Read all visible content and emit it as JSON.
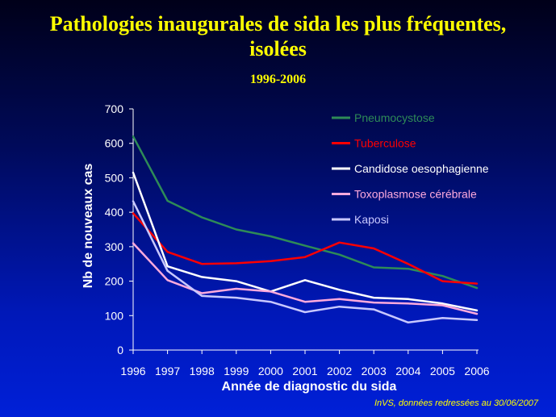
{
  "slide": {
    "title_line1": "Pathologies inaugurales de sida les plus fréquentes,",
    "title_line2": "isolées",
    "subtitle": "1996-2006",
    "source": "InVS, données redressées au 30/06/2007"
  },
  "colors": {
    "background": "#000a5a",
    "title": "#ffff00",
    "axis_text": "#ffffff"
  },
  "chart_data": {
    "type": "line",
    "title": "",
    "xlabel": "Année de diagnostic du sida",
    "ylabel": "Nb de nouveaux cas",
    "x": [
      1996,
      1997,
      1998,
      1999,
      2000,
      2001,
      2002,
      2003,
      2004,
      2005,
      2006
    ],
    "ylim": [
      0,
      700
    ],
    "yticks": [
      0,
      100,
      200,
      300,
      400,
      500,
      600,
      700
    ],
    "grid": false,
    "legend_position": "top-right",
    "series": [
      {
        "name": "Pneumocystose",
        "color": "#2e8b57",
        "values": [
          620,
          433,
          385,
          350,
          330,
          303,
          277,
          240,
          236,
          215,
          180
        ]
      },
      {
        "name": "Tuberculose",
        "color": "#ff0000",
        "values": [
          397,
          285,
          250,
          252,
          258,
          270,
          312,
          295,
          250,
          200,
          193
        ]
      },
      {
        "name": "Candidose oesophagienne",
        "color": "#ffffff",
        "values": [
          515,
          243,
          212,
          200,
          170,
          203,
          175,
          152,
          148,
          135,
          115
        ]
      },
      {
        "name": "Toxoplasmose cérébrale",
        "color": "#ffaadd",
        "values": [
          310,
          203,
          165,
          178,
          170,
          140,
          148,
          138,
          135,
          130,
          105
        ]
      },
      {
        "name": "Kaposi",
        "color": "#c8c8ff",
        "values": [
          432,
          230,
          157,
          152,
          140,
          110,
          126,
          118,
          80,
          93,
          87
        ]
      }
    ]
  }
}
